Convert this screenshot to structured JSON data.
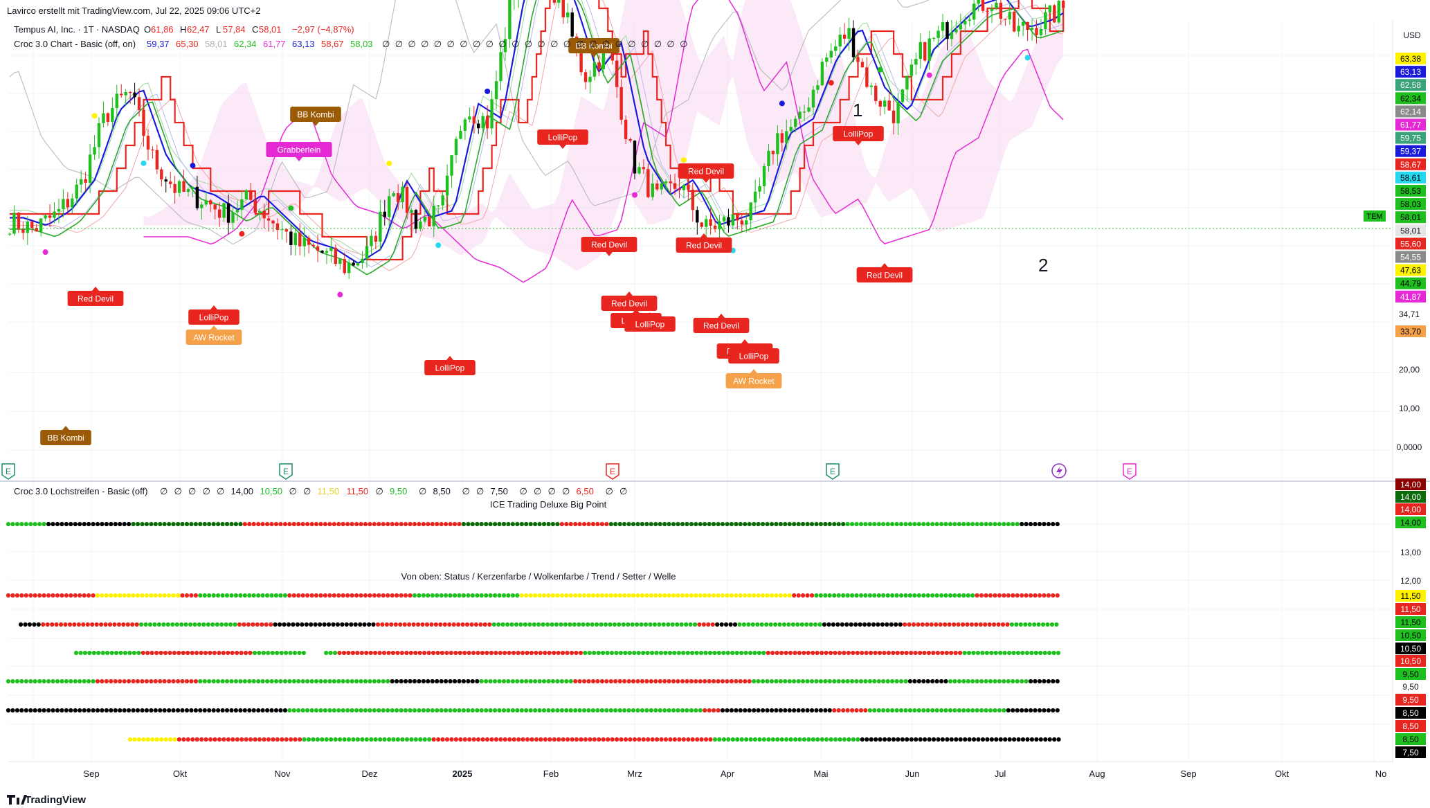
{
  "header": {
    "attribution": "Lavirco erstellt mit TradingView.com, Jul 22, 2025 09:06 UTC+2"
  },
  "symbol_line": {
    "name": "Tempus AI, Inc. · 1T · NASDAQ",
    "o_label": "O",
    "o": "61,86",
    "h_label": "H",
    "h": "62,47",
    "l_label": "L",
    "l": "57,84",
    "c_label": "C",
    "c": "58,01",
    "change": "−2,97 (−4,87%)"
  },
  "indicator1": {
    "name": "Croc 3.0 Chart - Basic (off, on)",
    "values": [
      {
        "v": "59,37",
        "color": "#1a1adb"
      },
      {
        "v": "65,30",
        "color": "#e8251f"
      },
      {
        "v": "58,01",
        "color": "#b0b0b0"
      },
      {
        "v": "62,34",
        "color": "#1fbf1f"
      },
      {
        "v": "61,77",
        "color": "#e52ad5"
      },
      {
        "v": "63,13",
        "color": "#1a1adb"
      },
      {
        "v": "58,67",
        "color": "#e8251f"
      },
      {
        "v": "58,03",
        "color": "#1fbf1f"
      }
    ],
    "empty_glyph": "∅",
    "empty_count": 24
  },
  "indicator2": {
    "name": "Croc 3.0 Lochstreifen - Basic (off)",
    "items": [
      {
        "v": "∅",
        "color": "#131722"
      },
      {
        "v": "∅",
        "color": "#131722"
      },
      {
        "v": "∅",
        "color": "#131722"
      },
      {
        "v": "∅",
        "color": "#131722"
      },
      {
        "v": "∅",
        "color": "#131722"
      },
      {
        "v": "14,00",
        "color": "#131722"
      },
      {
        "v": "10,50",
        "color": "#1fbf1f"
      },
      {
        "v": "∅",
        "color": "#131722"
      },
      {
        "v": "∅",
        "color": "#131722"
      },
      {
        "v": "11,50",
        "color": "#e8d31f"
      },
      {
        "v": "11,50",
        "color": "#e8251f"
      },
      {
        "v": "∅",
        "color": "#131722"
      },
      {
        "v": "9,50",
        "color": "#1fbf1f"
      },
      {
        "v": "∅",
        "color": "#131722"
      },
      {
        "v": "8,50",
        "color": "#131722"
      },
      {
        "v": "∅",
        "color": "#131722"
      },
      {
        "v": "∅",
        "color": "#131722"
      },
      {
        "v": "7,50",
        "color": "#131722"
      },
      {
        "v": "∅",
        "color": "#131722"
      },
      {
        "v": "∅",
        "color": "#131722"
      },
      {
        "v": "∅",
        "color": "#131722"
      },
      {
        "v": "∅",
        "color": "#131722"
      },
      {
        "v": "6,50",
        "color": "#e8251f"
      },
      {
        "v": "∅",
        "color": "#131722"
      },
      {
        "v": "∅",
        "color": "#131722"
      }
    ]
  },
  "pane2_titles": {
    "big_point": "ICE Trading Deluxe Big Point",
    "von_oben": "Von oben: Status / Kerzenfarbe / Wolkenfarbe / Trend / Setter / Welle"
  },
  "annotations": {
    "one": "1",
    "two": "2"
  },
  "currency": "USD",
  "ticker_tag": "TEM",
  "footer_brand": "TradingView",
  "colors": {
    "up": "#1fbf1f",
    "down": "#e8251f",
    "black": "#000000",
    "yellow": "#fff200",
    "blue_line": "#1a1adb",
    "red_line": "#e8251f",
    "magenta_line": "#e52ad5",
    "grey_line": "#b0b0b0",
    "cloud": "#f7d7f3",
    "grid": "#f0f3fa"
  },
  "chart_data": {
    "type": "candlestick",
    "title": "Tempus AI, Inc. · 1T · NASDAQ",
    "x_labels": [
      "Sep",
      "Okt",
      "Nov",
      "Dez",
      "2025",
      "Feb",
      "Mrz",
      "Apr",
      "Mai",
      "Jun",
      "Jul",
      "Aug",
      "Sep",
      "Okt",
      "No"
    ],
    "price_axis_ticks": [
      "34,71",
      "20,00",
      "10,00",
      "0,0000"
    ],
    "price_scale_labels": [
      {
        "v": "63,38",
        "bg": "#fff200",
        "fg": "#000000"
      },
      {
        "v": "63,13",
        "bg": "#1a1adb",
        "fg": "#ffffff"
      },
      {
        "v": "62,58",
        "bg": "#3aa37a",
        "fg": "#ffffff"
      },
      {
        "v": "62,34",
        "bg": "#1fbf1f",
        "fg": "#000000"
      },
      {
        "v": "62,14",
        "bg": "#8a8a8a",
        "fg": "#ffffff"
      },
      {
        "v": "61,77",
        "bg": "#e52ad5",
        "fg": "#ffffff"
      },
      {
        "v": "59,75",
        "bg": "#3aa37a",
        "fg": "#ffffff"
      },
      {
        "v": "59,37",
        "bg": "#1a1adb",
        "fg": "#ffffff"
      },
      {
        "v": "58,67",
        "bg": "#e8251f",
        "fg": "#ffffff"
      },
      {
        "v": "58,61",
        "bg": "#26d7f0",
        "fg": "#000000"
      },
      {
        "v": "58,53",
        "bg": "#1fbf1f",
        "fg": "#000000"
      },
      {
        "v": "58,03",
        "bg": "#1fbf1f",
        "fg": "#000000"
      },
      {
        "v": "58,01",
        "bg": "#1fbf1f",
        "fg": "#000000"
      },
      {
        "v": "58,01",
        "bg": "#e6e6e6",
        "fg": "#131722"
      },
      {
        "v": "55,60",
        "bg": "#e8251f",
        "fg": "#ffffff"
      },
      {
        "v": "54,55",
        "bg": "#8a8a8a",
        "fg": "#ffffff"
      },
      {
        "v": "47,63",
        "bg": "#fff200",
        "fg": "#000000"
      },
      {
        "v": "44,79",
        "bg": "#1fbf1f",
        "fg": "#000000"
      },
      {
        "v": "41,87",
        "bg": "#e52ad5",
        "fg": "#ffffff"
      },
      {
        "v": "33,70",
        "bg": "#f5a14a",
        "fg": "#000000"
      }
    ],
    "lower_scale_labels": [
      {
        "v": "14,00",
        "bg": "#8b0000",
        "fg": "#ffffff"
      },
      {
        "v": "14,00",
        "bg": "#0b6b0b",
        "fg": "#ffffff"
      },
      {
        "v": "14,00",
        "bg": "#e8251f",
        "fg": "#ffffff"
      },
      {
        "v": "14,00",
        "bg": "#1fbf1f",
        "fg": "#000000"
      },
      {
        "v": "13,00",
        "bg": "",
        "fg": "#131722"
      },
      {
        "v": "12,00",
        "bg": "",
        "fg": "#131722"
      },
      {
        "v": "11,50",
        "bg": "#fff200",
        "fg": "#000000"
      },
      {
        "v": "11,50",
        "bg": "#e8251f",
        "fg": "#ffffff"
      },
      {
        "v": "11,50",
        "bg": "#1fbf1f",
        "fg": "#000000"
      },
      {
        "v": "10,50",
        "bg": "#1fbf1f",
        "fg": "#000000"
      },
      {
        "v": "10,50",
        "bg": "#000000",
        "fg": "#ffffff"
      },
      {
        "v": "10,50",
        "bg": "#e8251f",
        "fg": "#ffffff"
      },
      {
        "v": "9,50",
        "bg": "#1fbf1f",
        "fg": "#000000"
      },
      {
        "v": "9,50",
        "bg": "",
        "fg": "#131722"
      },
      {
        "v": "9,50",
        "bg": "#e8251f",
        "fg": "#ffffff"
      },
      {
        "v": "8,50",
        "bg": "#000000",
        "fg": "#ffffff"
      },
      {
        "v": "8,50",
        "bg": "#e8251f",
        "fg": "#ffffff"
      },
      {
        "v": "8,50",
        "bg": "#1fbf1f",
        "fg": "#000000"
      },
      {
        "v": "7,50",
        "bg": "#000000",
        "fg": "#ffffff"
      }
    ],
    "signals": [
      {
        "label": "BB Kombi",
        "color": "#9a5a06",
        "i": 140
      },
      {
        "label": "BB Kombi",
        "color": "#9a5a06",
        "i": 69
      },
      {
        "label": "Grabberlein",
        "color": "#e52ad5",
        "i": 68
      },
      {
        "label": "Red Devil",
        "color": "#e8251f",
        "i": 20
      },
      {
        "label": "LolliPop",
        "color": "#e8251f",
        "i": 48
      },
      {
        "label": "AW Rocket",
        "color": "#f5a14a",
        "i": 48
      },
      {
        "label": "LolliPop",
        "color": "#e8251f",
        "i": 98
      },
      {
        "label": "Red Devil",
        "color": "#e8251f",
        "i": 110
      },
      {
        "label": "LolliPop",
        "color": "#e8251f",
        "i": 129
      },
      {
        "label": "Red Devil",
        "color": "#e8251f",
        "i": 143
      },
      {
        "label": "Red Devil",
        "color": "#e8251f",
        "i": 148
      },
      {
        "label": "Red Devil",
        "color": "#e8251f",
        "i": 165
      },
      {
        "label": "LolliPop",
        "color": "#e8251f",
        "i": 149
      },
      {
        "label": "LolliPop",
        "color": "#e8251f",
        "i": 152
      },
      {
        "label": "Red Devil",
        "color": "#e8251f",
        "i": 170
      },
      {
        "label": "Red Devil",
        "color": "#e8251f",
        "i": 175
      },
      {
        "label": "LolliPop",
        "color": "#e8251f",
        "i": 177
      },
      {
        "label": "AW Rocket",
        "color": "#f5a14a",
        "i": 177
      },
      {
        "label": "LolliPop",
        "color": "#e8251f",
        "i": 202
      },
      {
        "label": "Red Devil",
        "color": "#e8251f",
        "i": 211
      },
      {
        "label": "BB Kombi",
        "color": "#9a5a06",
        "i": 10
      }
    ],
    "earnings_markers": [
      "E",
      "E",
      "E",
      "E",
      "E"
    ]
  }
}
